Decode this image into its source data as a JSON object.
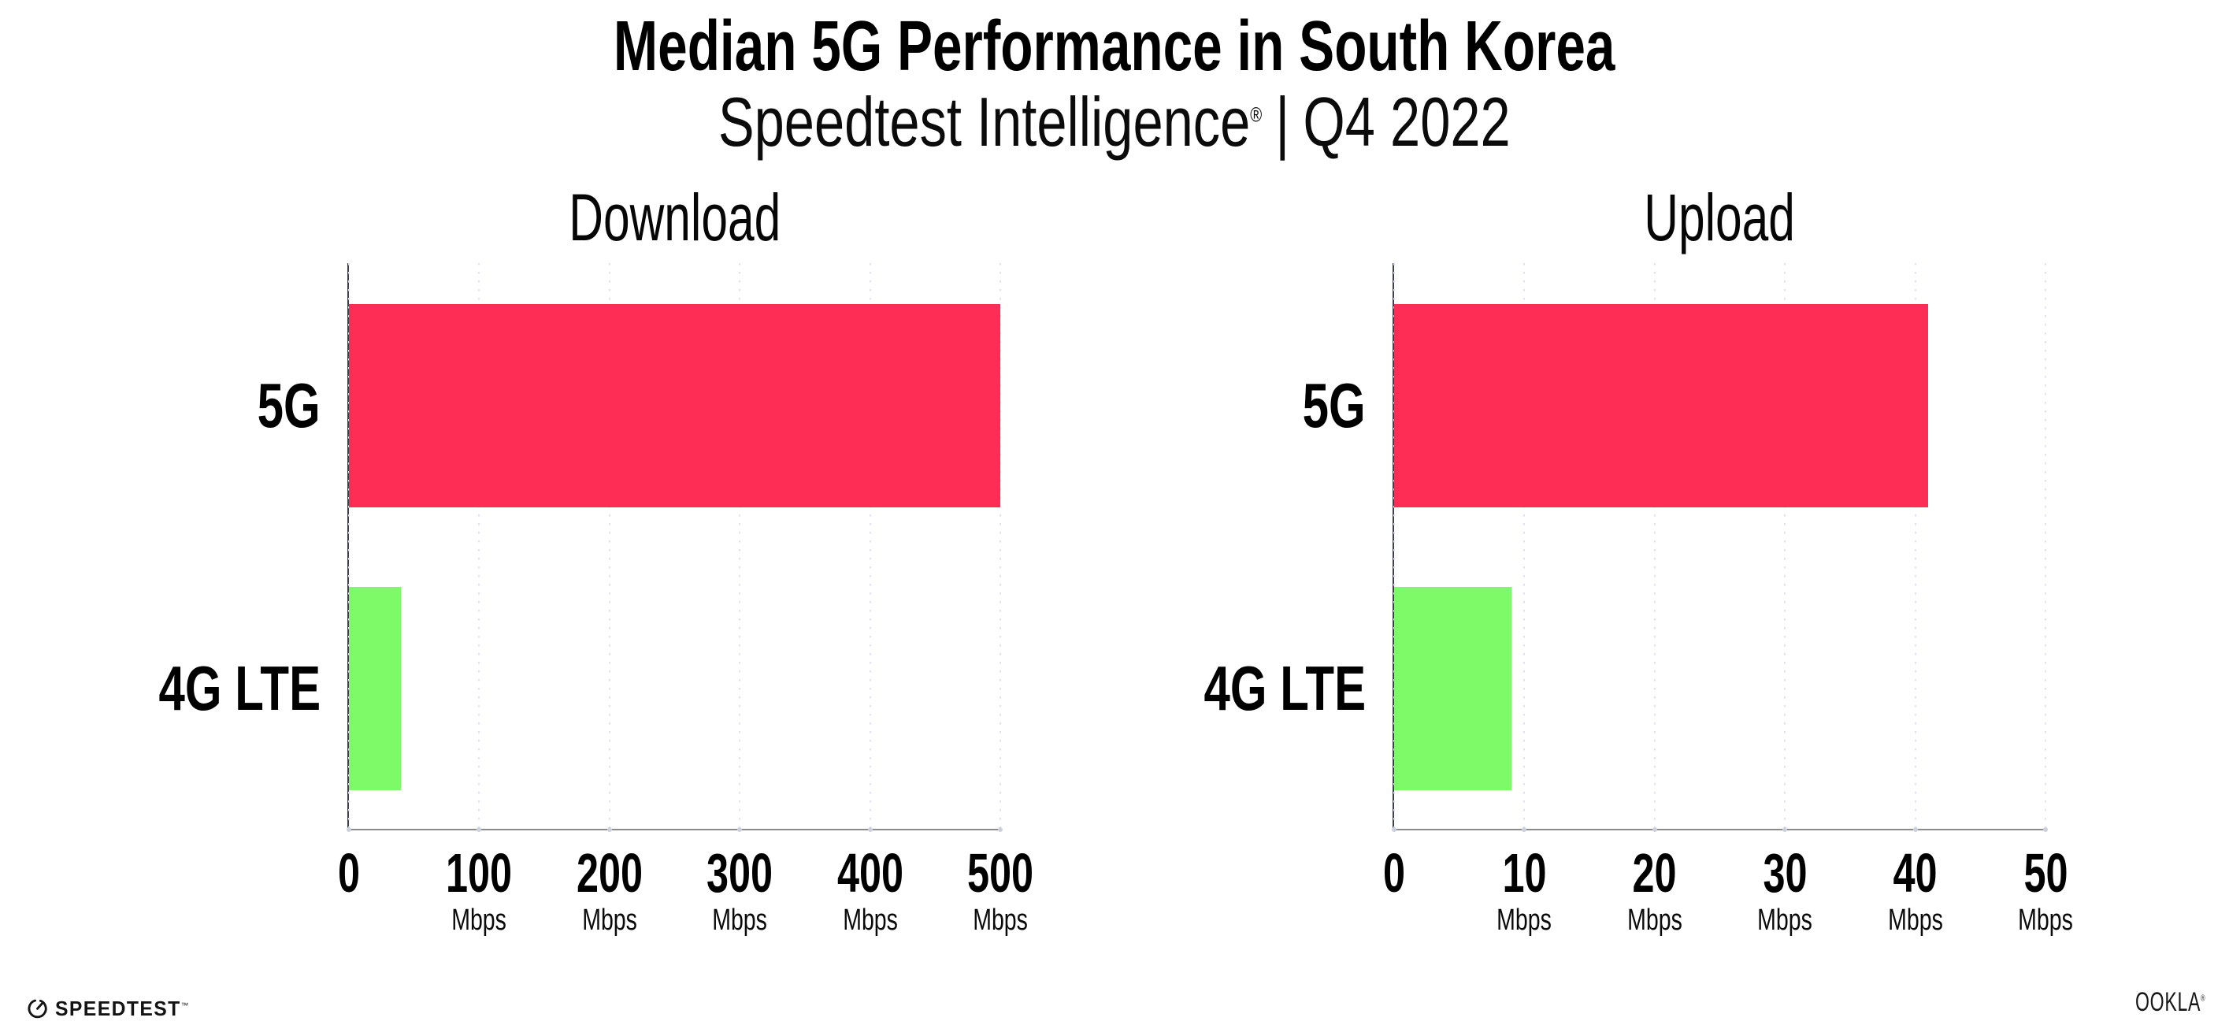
{
  "header": {
    "title": "Median 5G Performance in South Korea",
    "subtitle": {
      "product": "Speedtest Intelligence",
      "registered": "®",
      "separator": "|",
      "period": "Q4 2022"
    }
  },
  "chart_data": [
    {
      "type": "bar",
      "orientation": "horizontal",
      "title": "Download",
      "categories": [
        "5G",
        "4G LTE"
      ],
      "values": [
        500,
        40
      ],
      "unit": "Mbps",
      "xlim": [
        0,
        500
      ],
      "ticks": [
        0,
        100,
        200,
        300,
        400,
        500
      ],
      "bar_colors": [
        "#FD2D55",
        "#7EFA68"
      ],
      "gridlines": "vertical-dotted",
      "legend": "none"
    },
    {
      "type": "bar",
      "orientation": "horizontal",
      "title": "Upload",
      "categories": [
        "5G",
        "4G LTE"
      ],
      "values": [
        41,
        9
      ],
      "unit": "Mbps",
      "xlim": [
        0,
        50
      ],
      "ticks": [
        0,
        10,
        20,
        30,
        40,
        50
      ],
      "bar_colors": [
        "#FD2D55",
        "#7EFA68"
      ],
      "gridlines": "vertical-dotted",
      "legend": "none"
    }
  ],
  "footer": {
    "speedtest": {
      "text": "SPEEDTEST",
      "trademark": "™",
      "icon": "speedtest-gauge-icon"
    },
    "ookla": {
      "text": "OOKLA",
      "registered": "®"
    }
  },
  "colors": {
    "bar_5g": "#FD2D55",
    "bar_4g_lte": "#7EFA68",
    "axis_line": "#8b8b8b",
    "axis_spine": "#3d3f49",
    "gridline_dots": "#dfe1ec",
    "text": "#000000",
    "background": "#ffffff"
  }
}
